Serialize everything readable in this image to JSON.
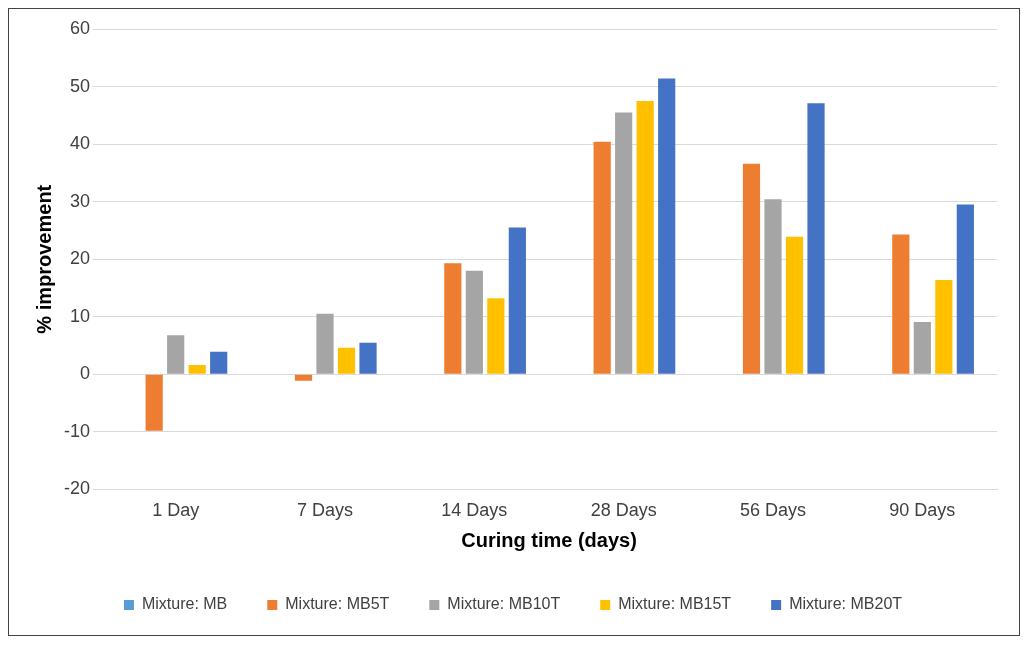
{
  "chart_data": {
    "type": "bar",
    "xlabel": "Curing time (days)",
    "ylabel": "% improvement",
    "categories": [
      "1 Day",
      "7 Days",
      "14 Days",
      "28 Days",
      "56 Days",
      "90 Days"
    ],
    "series": [
      {
        "name": "Mixture: MB",
        "color": "#5b9bd5",
        "values": [
          0,
          0,
          0,
          0,
          0,
          0
        ]
      },
      {
        "name": "Mixture: MB5T",
        "color": "#ed7d31",
        "values": [
          -9.8,
          -1.1,
          19.3,
          40.4,
          36.6,
          24.3
        ]
      },
      {
        "name": "Mixture: MB10T",
        "color": "#a5a5a5",
        "values": [
          6.8,
          10.5,
          18,
          45.5,
          30.4,
          9.1
        ]
      },
      {
        "name": "Mixture: MB15T",
        "color": "#ffc000",
        "values": [
          1.6,
          4.6,
          13.2,
          47.5,
          23.9,
          16.4
        ]
      },
      {
        "name": "Mixture: MB20T",
        "color": "#4472c4",
        "values": [
          3.9,
          5.5,
          25.5,
          51.4,
          47.1,
          29.5
        ]
      }
    ],
    "ylim": [
      -20,
      60
    ],
    "yticks": [
      -20,
      -10,
      0,
      10,
      20,
      30,
      40,
      50,
      60
    ],
    "grid": "y",
    "legend": "bottom"
  }
}
